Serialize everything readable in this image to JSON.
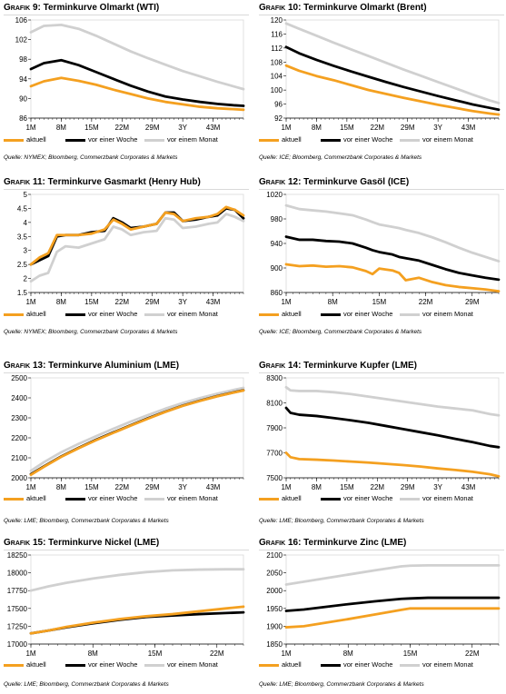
{
  "colors": {
    "aktuell": "#f4a020",
    "woche": "#000000",
    "monat": "#d0d0d0"
  },
  "legend_labels": [
    "aktuell",
    "vor einer Woche",
    "vor einem Monat"
  ],
  "panels": [
    {
      "prefix": "Grafik",
      "num": "9",
      "title_text": ": Terminkurve Olmarkt (WTI)",
      "source": "Quelle: NYMEX; Bloomberg, Commerzbank Corporates & Markets"
    },
    {
      "prefix": "Grafik",
      "num": "10",
      "title_text": ": Terminkurve Olmarkt (Brent)",
      "source": "Quelle: ICE; Bloomberg, Commerzbank Corporates & Markets"
    },
    {
      "prefix": "Grafik",
      "num": "11",
      "title_text": ": Terminkurve Gasmarkt (Henry Hub)",
      "source": "Quelle: NYMEX; Bloomberg, Commerzbank Corporates & Markets"
    },
    {
      "prefix": "Grafik",
      "num": "12",
      "title_text": ": Terminkurve Gasöl (ICE)",
      "source": "Quelle: ICE; Bloomberg, Commerzbank Corporates & Markets"
    },
    {
      "prefix": "Grafik",
      "num": "13",
      "title_text": ": Terminkurve Aluminium (LME)",
      "source": "Quelle: LME; Bloomberg, Commerzbank Corporates & Markets"
    },
    {
      "prefix": "Grafik",
      "num": "14",
      "title_text": ": Terminkurve Kupfer (LME)",
      "source": "Quelle: LME; Bloomberg, Commerzbank Corporates & Markets"
    },
    {
      "prefix": "Grafik",
      "num": "15",
      "title_text": ": Terminkurve Nickel (LME)",
      "source": "Quelle: LME; Bloomberg, Commerzbank Corporates & Markets"
    },
    {
      "prefix": "Grafik",
      "num": "16",
      "title_text": ": Terminkurve Zinc (LME)",
      "source": "Quelle: LME; Bloomberg, Commerzbank Corporates & Markets"
    }
  ],
  "chart_data": [
    {
      "type": "line",
      "title": "Grafik 9: Terminkurve Olmarkt (WTI)",
      "x_ticks": [
        "1M",
        "8M",
        "15M",
        "22M",
        "29M",
        "3Y",
        "43M"
      ],
      "x": [
        1,
        4,
        8,
        12,
        16,
        20,
        24,
        28,
        32,
        36,
        40,
        44,
        48,
        50
      ],
      "xlim": [
        1,
        50
      ],
      "ylim": [
        86,
        106
      ],
      "y_ticks": [
        86,
        90,
        94,
        98,
        102,
        106
      ],
      "legend": "bottom",
      "series": [
        {
          "name": "aktuell",
          "values": [
            92.5,
            93.5,
            94.2,
            93.6,
            92.8,
            91.8,
            90.9,
            90.0,
            89.3,
            88.8,
            88.3,
            88.0,
            87.8,
            87.7
          ]
        },
        {
          "name": "vor einer Woche",
          "values": [
            96.0,
            97.2,
            97.8,
            96.8,
            95.4,
            94.0,
            92.6,
            91.4,
            90.4,
            89.8,
            89.3,
            88.9,
            88.6,
            88.5
          ]
        },
        {
          "name": "vor einem Monat",
          "values": [
            103.5,
            104.8,
            105.0,
            104.2,
            102.8,
            101.2,
            99.6,
            98.2,
            96.9,
            95.6,
            94.5,
            93.4,
            92.4,
            91.9
          ]
        }
      ]
    },
    {
      "type": "line",
      "title": "Grafik 10: Terminkurve Olmarkt (Brent)",
      "x_ticks": [
        "1M",
        "8M",
        "15M",
        "22M",
        "29M",
        "3Y",
        "43M"
      ],
      "x": [
        1,
        4,
        8,
        12,
        16,
        20,
        24,
        28,
        32,
        36,
        40,
        44,
        48,
        50
      ],
      "xlim": [
        1,
        50
      ],
      "ylim": [
        92,
        120
      ],
      "y_ticks": [
        92,
        96,
        100,
        104,
        108,
        112,
        116,
        120
      ],
      "legend": "bottom",
      "series": [
        {
          "name": "aktuell",
          "values": [
            107.0,
            105.5,
            104.0,
            102.8,
            101.4,
            100.0,
            98.9,
            97.8,
            96.8,
            95.8,
            94.9,
            94.0,
            93.3,
            93.0
          ]
        },
        {
          "name": "vor einer Woche",
          "values": [
            112.3,
            110.5,
            108.6,
            106.9,
            105.3,
            103.8,
            102.3,
            100.9,
            99.6,
            98.3,
            97.1,
            95.9,
            94.9,
            94.4
          ]
        },
        {
          "name": "vor einem Monat",
          "values": [
            119.0,
            117.5,
            115.5,
            113.5,
            111.6,
            109.7,
            107.8,
            105.9,
            104.1,
            102.3,
            100.5,
            98.7,
            97.0,
            96.3
          ]
        }
      ]
    },
    {
      "type": "line",
      "title": "Grafik 11: Terminkurve Gasmarkt (Henry Hub)",
      "x_ticks": [
        "1M",
        "8M",
        "15M",
        "22M",
        "29M",
        "3Y",
        "43M"
      ],
      "x": [
        1,
        3,
        5,
        7,
        9,
        12,
        15,
        18,
        20,
        22,
        24,
        27,
        30,
        32,
        34,
        36,
        39,
        42,
        44,
        46,
        48,
        50
      ],
      "xlim": [
        1,
        50
      ],
      "ylim": [
        1.5,
        5.0
      ],
      "y_ticks": [
        1.5,
        2.0,
        2.5,
        3.0,
        3.5,
        4.0,
        4.5,
        5.0
      ],
      "legend": "bottom",
      "series": [
        {
          "name": "aktuell",
          "values": [
            2.5,
            2.75,
            2.9,
            3.55,
            3.55,
            3.55,
            3.6,
            3.75,
            4.1,
            3.95,
            3.75,
            3.85,
            3.95,
            4.35,
            4.3,
            4.05,
            4.15,
            4.2,
            4.3,
            4.55,
            4.45,
            4.25
          ]
        },
        {
          "name": "vor einer Woche",
          "values": [
            2.5,
            2.65,
            2.8,
            3.5,
            3.55,
            3.55,
            3.65,
            3.7,
            4.15,
            4.0,
            3.8,
            3.85,
            3.95,
            4.35,
            4.35,
            4.05,
            4.1,
            4.2,
            4.25,
            4.5,
            4.45,
            4.15
          ]
        },
        {
          "name": "vor einem Monat",
          "values": [
            1.9,
            2.1,
            2.2,
            2.95,
            3.15,
            3.1,
            3.25,
            3.4,
            3.85,
            3.75,
            3.55,
            3.65,
            3.7,
            4.15,
            4.1,
            3.8,
            3.85,
            3.95,
            4.0,
            4.3,
            4.2,
            4.05
          ]
        }
      ]
    },
    {
      "type": "line",
      "title": "Grafik 12: Terminkurve Gasöl (ICE)",
      "x_ticks": [
        "1M",
        "8M",
        "15M",
        "22M",
        "29M"
      ],
      "x": [
        1,
        3,
        5,
        7,
        9,
        11,
        13,
        14,
        15,
        17,
        18,
        19,
        21,
        23,
        25,
        27,
        29,
        31,
        33
      ],
      "xlim": [
        1,
        33
      ],
      "ylim": [
        860,
        1020
      ],
      "y_ticks": [
        860,
        900,
        940,
        980,
        1020
      ],
      "legend": "bottom",
      "series": [
        {
          "name": "aktuell",
          "values": [
            906,
            903,
            904,
            902,
            903,
            901,
            895,
            890,
            899,
            896,
            892,
            880,
            884,
            877,
            872,
            869,
            867,
            865,
            862
          ]
        },
        {
          "name": "vor einer Woche",
          "values": [
            951,
            946,
            946,
            944,
            943,
            940,
            933,
            929,
            926,
            922,
            918,
            916,
            912,
            905,
            898,
            892,
            888,
            884,
            881
          ]
        },
        {
          "name": "vor einem Monat",
          "values": [
            1002,
            996,
            994,
            992,
            989,
            986,
            979,
            975,
            971,
            967,
            965,
            962,
            957,
            950,
            942,
            933,
            925,
            918,
            911
          ]
        }
      ]
    },
    {
      "type": "line",
      "title": "Grafik 13: Terminkurve Aluminium (LME)",
      "x_ticks": [
        "1M",
        "8M",
        "15M",
        "22M",
        "29M",
        "3Y",
        "43M"
      ],
      "x": [
        1,
        4,
        8,
        12,
        16,
        20,
        24,
        28,
        32,
        36,
        40,
        44,
        48,
        50
      ],
      "xlim": [
        1,
        50
      ],
      "ylim": [
        2000,
        2500
      ],
      "y_ticks": [
        2000,
        2100,
        2200,
        2300,
        2400,
        2500
      ],
      "legend": "bottom",
      "series": [
        {
          "name": "aktuell",
          "values": [
            2015,
            2055,
            2105,
            2148,
            2188,
            2225,
            2261,
            2296,
            2330,
            2360,
            2385,
            2408,
            2428,
            2437
          ]
        },
        {
          "name": "vor einer Woche",
          "values": [
            2018,
            2057,
            2107,
            2150,
            2190,
            2227,
            2263,
            2298,
            2331,
            2361,
            2386,
            2409,
            2429,
            2438
          ]
        },
        {
          "name": "vor einem Monat",
          "values": [
            2035,
            2078,
            2128,
            2170,
            2208,
            2245,
            2281,
            2314,
            2346,
            2374,
            2399,
            2421,
            2441,
            2450
          ]
        }
      ]
    },
    {
      "type": "line",
      "title": "Grafik 14: Terminkurve Kupfer (LME)",
      "x_ticks": [
        "1M",
        "8M",
        "15M",
        "22M",
        "29M",
        "3Y",
        "43M"
      ],
      "x": [
        1,
        2,
        4,
        8,
        12,
        16,
        20,
        24,
        28,
        32,
        36,
        40,
        44,
        48,
        50
      ],
      "xlim": [
        1,
        50
      ],
      "ylim": [
        7500,
        8300
      ],
      "y_ticks": [
        7500,
        7700,
        7900,
        8100,
        8300
      ],
      "legend": "bottom",
      "series": [
        {
          "name": "aktuell",
          "values": [
            7700,
            7665,
            7650,
            7645,
            7638,
            7630,
            7622,
            7612,
            7602,
            7590,
            7575,
            7563,
            7548,
            7528,
            7512
          ]
        },
        {
          "name": "vor einer Woche",
          "values": [
            8060,
            8020,
            8005,
            7995,
            7978,
            7960,
            7940,
            7915,
            7890,
            7865,
            7840,
            7812,
            7785,
            7755,
            7745
          ]
        },
        {
          "name": "vor einem Monat",
          "values": [
            8225,
            8200,
            8195,
            8195,
            8185,
            8170,
            8150,
            8130,
            8110,
            8090,
            8070,
            8055,
            8040,
            8010,
            8000
          ]
        }
      ]
    },
    {
      "type": "line",
      "title": "Grafik 15: Terminkurve Nickel (LME)",
      "x_ticks": [
        "1M",
        "8M",
        "15M",
        "22M"
      ],
      "x": [
        1,
        3,
        5,
        8,
        11,
        14,
        17,
        20,
        23,
        25
      ],
      "xlim": [
        1,
        25
      ],
      "ylim": [
        17000,
        18250
      ],
      "y_ticks": [
        17000,
        17250,
        17500,
        17750,
        18000,
        18250
      ],
      "legend": "bottom",
      "series": [
        {
          "name": "aktuell",
          "values": [
            17150,
            17190,
            17240,
            17300,
            17350,
            17390,
            17420,
            17460,
            17500,
            17525
          ]
        },
        {
          "name": "vor einer Woche",
          "values": [
            17150,
            17190,
            17235,
            17290,
            17340,
            17380,
            17400,
            17420,
            17435,
            17445
          ]
        },
        {
          "name": "vor einem Monat",
          "values": [
            17750,
            17810,
            17860,
            17920,
            17970,
            18010,
            18035,
            18045,
            18050,
            18050
          ]
        }
      ]
    },
    {
      "type": "line",
      "title": "Grafik 16: Terminkurve Zinc (LME)",
      "x_ticks": [
        "1M",
        "8M",
        "15M",
        "22M"
      ],
      "x": [
        1,
        3,
        5,
        8,
        11,
        14,
        15,
        17,
        20,
        23,
        25
      ],
      "xlim": [
        1,
        25
      ],
      "ylim": [
        1850,
        2100
      ],
      "y_ticks": [
        1850,
        1900,
        1950,
        2000,
        2050,
        2100
      ],
      "legend": "bottom",
      "series": [
        {
          "name": "aktuell",
          "values": [
            1897,
            1900,
            1908,
            1920,
            1933,
            1946,
            1950,
            1950,
            1950,
            1950,
            1950
          ]
        },
        {
          "name": "vor einer Woche",
          "values": [
            1943,
            1947,
            1953,
            1962,
            1970,
            1977,
            1978,
            1980,
            1980,
            1980,
            1980
          ]
        },
        {
          "name": "vor einem Monat",
          "values": [
            2017,
            2025,
            2033,
            2045,
            2057,
            2068,
            2070,
            2071,
            2071,
            2071,
            2071
          ]
        }
      ]
    }
  ]
}
